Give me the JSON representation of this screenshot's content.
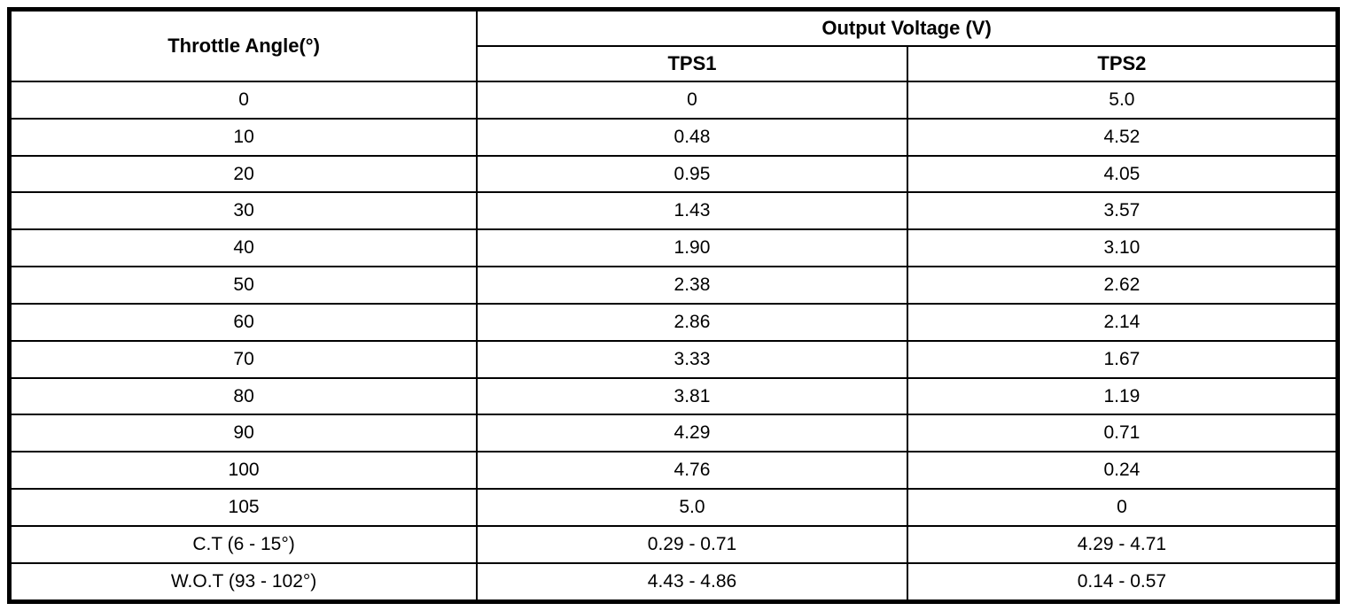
{
  "table": {
    "header": {
      "angle_label": "Throttle Angle(°)",
      "group_label": "Output Voltage (V)",
      "tps1_label": "TPS1",
      "tps2_label": "TPS2"
    },
    "rows": [
      {
        "angle": "0",
        "tps1": "0",
        "tps2": "5.0"
      },
      {
        "angle": "10",
        "tps1": "0.48",
        "tps2": "4.52"
      },
      {
        "angle": "20",
        "tps1": "0.95",
        "tps2": "4.05"
      },
      {
        "angle": "30",
        "tps1": "1.43",
        "tps2": "3.57"
      },
      {
        "angle": "40",
        "tps1": "1.90",
        "tps2": "3.10"
      },
      {
        "angle": "50",
        "tps1": "2.38",
        "tps2": "2.62"
      },
      {
        "angle": "60",
        "tps1": "2.86",
        "tps2": "2.14"
      },
      {
        "angle": "70",
        "tps1": "3.33",
        "tps2": "1.67"
      },
      {
        "angle": "80",
        "tps1": "3.81",
        "tps2": "1.19"
      },
      {
        "angle": "90",
        "tps1": "4.29",
        "tps2": "0.71"
      },
      {
        "angle": "100",
        "tps1": "4.76",
        "tps2": "0.24"
      },
      {
        "angle": "105",
        "tps1": "5.0",
        "tps2": "0"
      },
      {
        "angle": "C.T (6 - 15°)",
        "tps1": "0.29 - 0.71",
        "tps2": "4.29 - 4.71"
      },
      {
        "angle": "W.O.T (93 - 102°)",
        "tps1": "4.43 - 4.86",
        "tps2": "0.14 - 0.57"
      }
    ]
  }
}
